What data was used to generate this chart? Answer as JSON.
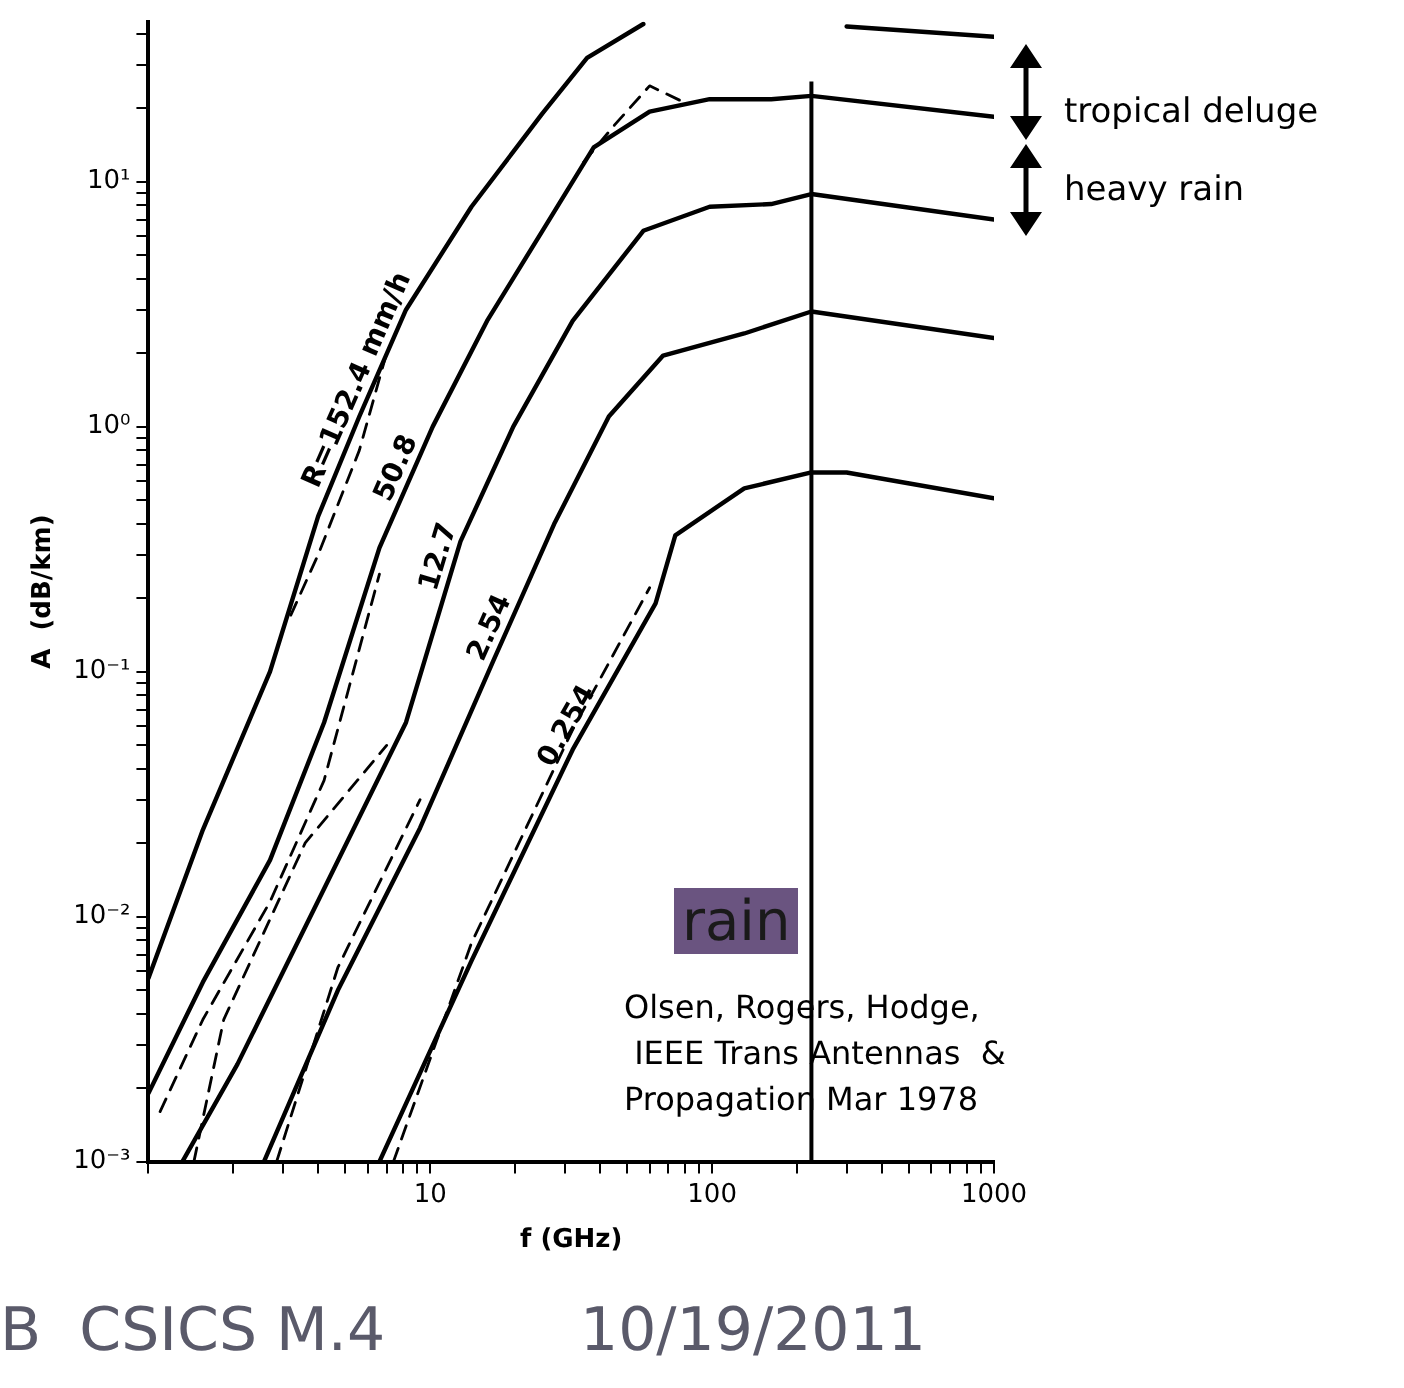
{
  "chart_data": {
    "type": "line",
    "xlabel": "f (GHz)",
    "ylabel": "A  (dB/km)",
    "log": "xy",
    "grid": false,
    "legend": false,
    "marker": "none",
    "xlim": [
      1,
      1000
    ],
    "ylim": [
      0.001,
      45
    ],
    "xticks": [
      {
        "value": 1,
        "label": null
      },
      {
        "value": 2,
        "label": null
      },
      {
        "value": 3,
        "label": null
      },
      {
        "value": 4,
        "label": null
      },
      {
        "value": 5,
        "label": null
      },
      {
        "value": 6,
        "label": null
      },
      {
        "value": 7,
        "label": null
      },
      {
        "value": 8,
        "label": null
      },
      {
        "value": 9,
        "label": null
      },
      10,
      {
        "value": 20,
        "label": null
      },
      {
        "value": 30,
        "label": null
      },
      {
        "value": 40,
        "label": null
      },
      {
        "value": 50,
        "label": null
      },
      {
        "value": 60,
        "label": null
      },
      {
        "value": 70,
        "label": null
      },
      {
        "value": 80,
        "label": null
      },
      {
        "value": 90,
        "label": null
      },
      100,
      {
        "value": 200,
        "label": null
      },
      {
        "value": 300,
        "label": null
      },
      {
        "value": 400,
        "label": null
      },
      {
        "value": 500,
        "label": null
      },
      {
        "value": 600,
        "label": null
      },
      {
        "value": 700,
        "label": null
      },
      {
        "value": 800,
        "label": null
      },
      {
        "value": 900,
        "label": null
      },
      1000
    ],
    "yticks": [
      {
        "value": 0.001,
        "label": "10⁻³"
      },
      {
        "value": 0.002,
        "label": null
      },
      {
        "value": 0.003,
        "label": null
      },
      {
        "value": 0.004,
        "label": null
      },
      {
        "value": 0.005,
        "label": null
      },
      {
        "value": 0.006,
        "label": null
      },
      {
        "value": 0.007,
        "label": null
      },
      {
        "value": 0.008,
        "label": null
      },
      {
        "value": 0.009,
        "label": null
      },
      {
        "value": 0.01,
        "label": "10⁻²"
      },
      {
        "value": 0.02,
        "label": null
      },
      {
        "value": 0.03,
        "label": null
      },
      {
        "value": 0.04,
        "label": null
      },
      {
        "value": 0.05,
        "label": null
      },
      {
        "value": 0.06,
        "label": null
      },
      {
        "value": 0.07,
        "label": null
      },
      {
        "value": 0.08,
        "label": null
      },
      {
        "value": 0.09,
        "label": null
      },
      {
        "value": 0.1,
        "label": "10⁻¹"
      },
      {
        "value": 0.2,
        "label": null
      },
      {
        "value": 0.3,
        "label": null
      },
      {
        "value": 0.4,
        "label": null
      },
      {
        "value": 0.5,
        "label": null
      },
      {
        "value": 0.6,
        "label": null
      },
      {
        "value": 0.7,
        "label": null
      },
      {
        "value": 0.8,
        "label": null
      },
      {
        "value": 0.9,
        "label": null
      },
      {
        "value": 1,
        "label": "10⁰"
      },
      {
        "value": 2,
        "label": null
      },
      {
        "value": 3,
        "label": null
      },
      {
        "value": 4,
        "label": null
      },
      {
        "value": 5,
        "label": null
      },
      {
        "value": 6,
        "label": null
      },
      {
        "value": 7,
        "label": null
      },
      {
        "value": 8,
        "label": null
      },
      {
        "value": 9,
        "label": null
      },
      {
        "value": 10,
        "label": "10¹"
      },
      {
        "value": 20,
        "label": null
      },
      {
        "value": 30,
        "label": null
      },
      {
        "value": 40,
        "label": null
      }
    ],
    "series": [
      {
        "name": "R=152.4 mm/h",
        "color": "#000000",
        "line_style": "solid",
        "x": [
          1,
          1.56,
          2.7,
          4,
          5.6,
          8.2,
          14,
          25,
          36,
          57,
          null,
          300,
          1000
        ],
        "values": [
          0.0056,
          0.0226,
          0.1,
          0.43,
          1.1,
          3.0,
          7.9,
          19,
          32,
          44,
          null,
          43,
          39
        ]
      },
      {
        "name": "50.8",
        "color": "#000000",
        "line_style": "solid",
        "x": [
          1,
          1.56,
          2.7,
          4.2,
          6.6,
          10.2,
          15.9,
          25,
          38,
          60,
          98,
          162,
          225,
          1000
        ],
        "values": [
          0.0019,
          0.0054,
          0.017,
          0.062,
          0.32,
          1.0,
          2.7,
          6.3,
          13.8,
          19.3,
          21.7,
          21.7,
          22.4,
          18.4
        ]
      },
      {
        "name": "12.7",
        "color": "#000000",
        "line_style": "solid",
        "x": [
          1.32,
          2.07,
          4.2,
          8.2,
          12.8,
          19.7,
          32,
          57,
          98,
          162,
          225,
          1000
        ],
        "values": [
          0.001,
          0.0025,
          0.013,
          0.062,
          0.34,
          1.0,
          2.7,
          6.3,
          7.9,
          8.1,
          8.9,
          7.0
        ]
      },
      {
        "name": "2.54",
        "color": "#000000",
        "line_style": "solid",
        "x": [
          2.57,
          4.7,
          9.2,
          16.7,
          27.5,
          43,
          67,
          130,
          225,
          1000
        ],
        "values": [
          0.001,
          0.005,
          0.023,
          0.11,
          0.4,
          1.1,
          1.95,
          2.4,
          2.95,
          2.3
        ]
      },
      {
        "name": "0.254",
        "color": "#000000",
        "line_style": "solid",
        "x": [
          6.6,
          14,
          32,
          63,
          74,
          130,
          225,
          300,
          1000
        ],
        "values": [
          0.001,
          0.0066,
          0.048,
          0.19,
          0.36,
          0.56,
          0.65,
          0.65,
          0.51
        ]
      },
      {
        "color": "#000000",
        "line_style": "dashed",
        "x": [
          3.2,
          4,
          5.6,
          7
        ],
        "values": [
          0.17,
          0.3,
          0.8,
          2.0
        ]
      },
      {
        "color": "#000000",
        "line_style": "dashed",
        "x": [
          1.1,
          1.56,
          2.7,
          4.2,
          6.6,
          null,
          35,
          45,
          60,
          80
        ],
        "values": [
          0.0016,
          0.0038,
          0.0115,
          0.036,
          0.25,
          null,
          12,
          17,
          24.6,
          21
        ]
      },
      {
        "color": "#000000",
        "line_style": "dashed",
        "x": [
          1.45,
          1.85,
          3.6,
          7
        ],
        "values": [
          0.001,
          0.0038,
          0.02,
          0.05
        ]
      },
      {
        "color": "#000000",
        "line_style": "dashed",
        "x": [
          2.85,
          4.7,
          9.2
        ],
        "values": [
          0.001,
          0.0062,
          0.03
        ]
      },
      {
        "color": "#000000",
        "line_style": "dashed",
        "x": [
          7.4,
          14,
          32,
          60
        ],
        "values": [
          0.001,
          0.0078,
          0.058,
          0.22
        ]
      }
    ],
    "ref_lines": [
      {
        "axis": "x",
        "value": 225,
        "color": "#000000"
      }
    ],
    "annotations": [
      "tropical deluge",
      "heavy rain",
      "rain",
      "Olsen, Rogers, Hodge,\n IEEE Trans Antennas  &\nPropagation Mar 1978",
      "B  CSICS M.4",
      "10/19/2011"
    ]
  }
}
